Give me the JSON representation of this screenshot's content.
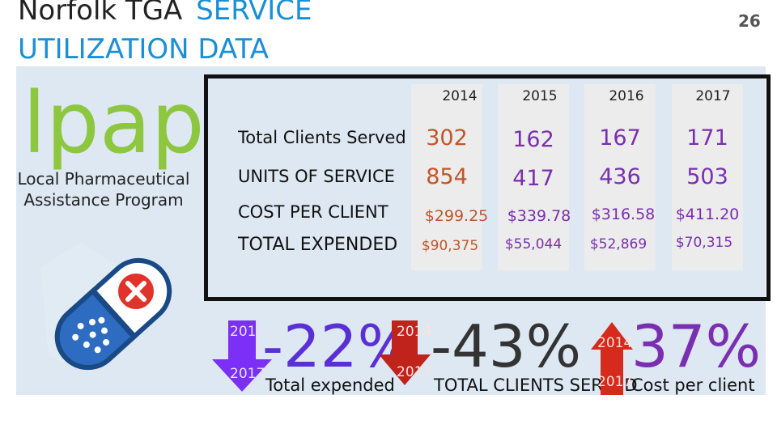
{
  "slide": {
    "title_part1": "Norfolk TGA",
    "title_part2": "SERVICE",
    "title_line2": "UTILIZATION DATA",
    "page_number": "26"
  },
  "logo": {
    "word": "lpap",
    "subtitle_line1": "Local Pharmaceutical",
    "subtitle_line2": "Assistance Program",
    "icon": "pill-capsule-cancel-icon"
  },
  "table": {
    "years": [
      "2014",
      "2015",
      "2016",
      "2017"
    ],
    "rows": [
      {
        "label": "Total Clients Served",
        "values": [
          "302",
          "162",
          "167",
          "171"
        ]
      },
      {
        "label": "UNITS OF SERVICE",
        "values": [
          "854",
          "417",
          "436",
          "503"
        ]
      },
      {
        "label": "COST PER CLIENT",
        "values": [
          "$299.25",
          "$339.78",
          "$316.58",
          "$411.20"
        ]
      },
      {
        "label": "TOTAL EXPENDED",
        "values": [
          "$90,375",
          "$55,044",
          "$52,869",
          "$70,315"
        ]
      }
    ]
  },
  "stats": [
    {
      "from": "2014",
      "to": "2017",
      "percent": "-22%",
      "caption": "Total expended",
      "direction": "down",
      "arrow_color": "#7b2ff7",
      "text_color": "#5b2fd6"
    },
    {
      "from": "2014",
      "to": "2017",
      "percent": "-43%",
      "caption": "TOTAL CLIENTS SERVED",
      "direction": "down",
      "arrow_color": "#c0231c",
      "text_color": "#333333"
    },
    {
      "from": "2014",
      "to": "2017",
      "percent": "37%",
      "caption": "Cost per client",
      "direction": "up",
      "arrow_color": "#d62a1c",
      "text_color": "#7a2fb0"
    }
  ],
  "colors": {
    "title_blue": "#1b8fd6",
    "lpap_green": "#8dc63f",
    "value_2014": "#c0562a",
    "value_other": "#7a2fb0"
  }
}
